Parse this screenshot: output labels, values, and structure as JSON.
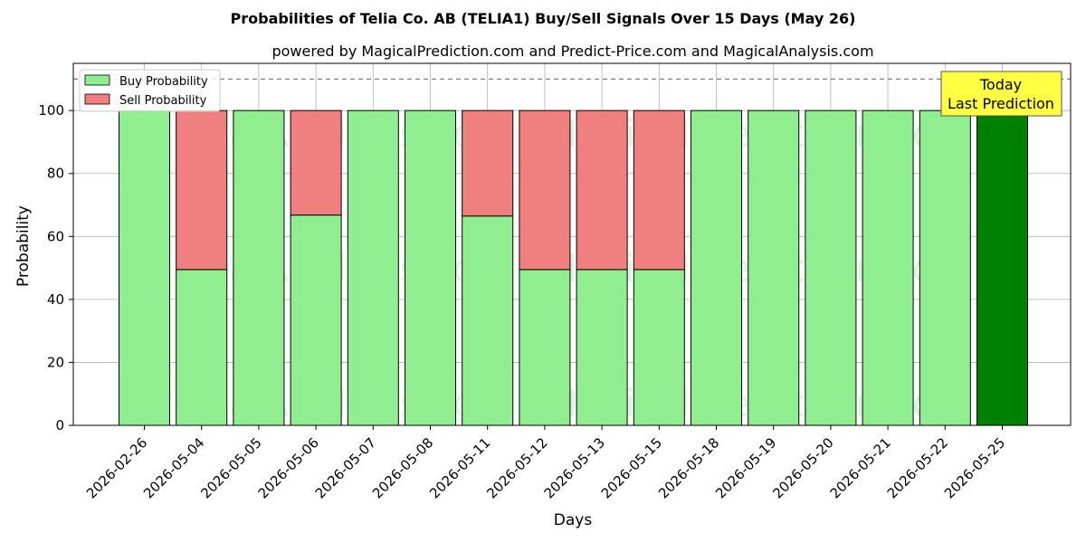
{
  "chart_data": {
    "type": "bar",
    "stacked": true,
    "title": "Probabilities of Telia Co. AB (TELIA1) Buy/Sell Signals Over 15 Days (May 26)",
    "subtitle": "powered by MagicalPrediction.com and Predict-Price.com and MagicalAnalysis.com",
    "xlabel": "Days",
    "ylabel": "Probability",
    "ylim": [
      0,
      115
    ],
    "yticks": [
      0,
      20,
      40,
      60,
      80,
      100
    ],
    "grid": true,
    "legend_position": "top-left",
    "reference_line": 110,
    "categories": [
      "2026-02-26",
      "2026-05-04",
      "2026-05-05",
      "2026-05-06",
      "2026-05-07",
      "2026-05-08",
      "2026-05-11",
      "2026-05-12",
      "2026-05-13",
      "2026-05-15",
      "2026-05-18",
      "2026-05-19",
      "2026-05-20",
      "2026-05-21",
      "2026-05-22",
      "2026-05-25"
    ],
    "series": [
      {
        "name": "Buy Probability",
        "color": "#90ee90",
        "values": [
          100,
          49.5,
          100,
          66.8,
          100,
          100,
          66.5,
          49.5,
          49.5,
          49.5,
          100,
          100,
          100,
          100,
          100,
          100
        ]
      },
      {
        "name": "Sell Probability",
        "color": "#f08080",
        "values": [
          0,
          50.5,
          0,
          33.2,
          0,
          0,
          33.5,
          50.5,
          50.5,
          50.5,
          0,
          0,
          0,
          0,
          0,
          0
        ]
      }
    ],
    "highlight": {
      "index": 15,
      "color": "#008000"
    },
    "annotation": {
      "line1": "Today",
      "line2": "Last Prediction",
      "background": "#ffff44"
    },
    "watermarks": [
      "MagicalAnalysis.com",
      "MagicalPrediction.com"
    ]
  }
}
